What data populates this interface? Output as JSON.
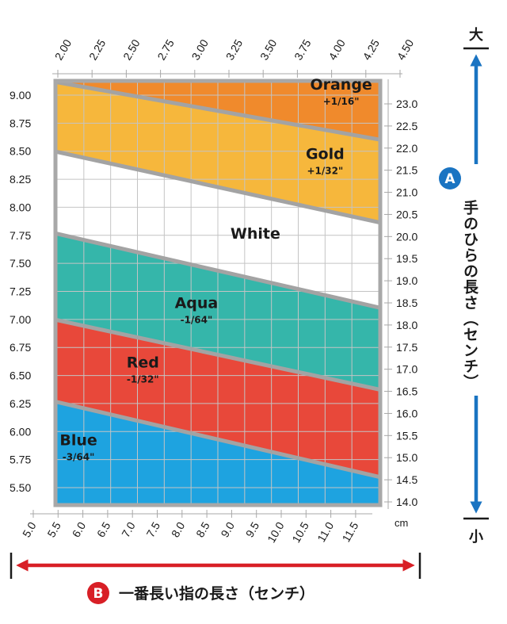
{
  "chart_data": {
    "type": "area",
    "left_axis": {
      "ticks": [
        "9.00",
        "8.75",
        "8.50",
        "8.25",
        "8.00",
        "7.75",
        "7.50",
        "7.25",
        "7.00",
        "6.75",
        "6.50",
        "6.25",
        "6.00",
        "5.75",
        "5.50"
      ],
      "range": [
        5.5,
        9.17
      ]
    },
    "right_axis": {
      "ticks": [
        "23.0",
        "22.5",
        "22.0",
        "21.5",
        "21.0",
        "20.5",
        "20.0",
        "19.5",
        "19.0",
        "18.5",
        "18.0",
        "17.5",
        "17.0",
        "16.5",
        "16.0",
        "15.5",
        "15.0",
        "14.5",
        "14.0"
      ],
      "range": [
        14.0,
        23.3
      ]
    },
    "top_axis": {
      "ticks": [
        "2.00",
        "2.25",
        "2.50",
        "2.75",
        "3.00",
        "3.25",
        "3.50",
        "3.75",
        "4.00",
        "4.25",
        "4.50"
      ],
      "range": [
        2.0,
        4.5
      ]
    },
    "bottom_axis": {
      "ticks": [
        "5.0",
        "5.5",
        "6.0",
        "6.5",
        "7.0",
        "7.5",
        "8.0",
        "8.5",
        "9.0",
        "9.5",
        "10.0",
        "10.5",
        "11.0",
        "11.5"
      ],
      "unit": "cm",
      "range": [
        5.5,
        11.5
      ]
    },
    "x_label": "一番長い指の長さ（センチ）",
    "y_label": "手のひらの長さ（センチ）",
    "y_arrow_top": "大",
    "y_arrow_bottom": "小",
    "badge_a": "A",
    "badge_b": "B",
    "boundaries": [
      {
        "name": "top",
        "y_left": 9.17,
        "y_right": 9.17
      },
      {
        "name": "orange-gold",
        "y_left": 9.12,
        "y_right": 8.6
      },
      {
        "name": "gold-white",
        "y_left": 8.5,
        "y_right": 7.86
      },
      {
        "name": "white-aqua",
        "y_left": 7.77,
        "y_right": 7.1
      },
      {
        "name": "aqua-red",
        "y_left": 7.0,
        "y_right": 6.37
      },
      {
        "name": "red-blue",
        "y_left": 6.27,
        "y_right": 5.59
      },
      {
        "name": "bottom",
        "y_left": 5.5,
        "y_right": 5.5
      }
    ],
    "zones": [
      {
        "name": "Orange",
        "adjustment": "+1/16\"",
        "color": "#f08a2c",
        "label_x": 10.8,
        "label_y": 9.05
      },
      {
        "name": "Gold",
        "adjustment": "+1/32\"",
        "color": "#f6b73c",
        "label_x": 10.5,
        "label_y": 8.43
      },
      {
        "name": "White",
        "adjustment": "",
        "color": "#ffffff",
        "label_x": 9.2,
        "label_y": 7.72
      },
      {
        "name": "Aqua",
        "adjustment": "-1/64\"",
        "color": "#35b6aa",
        "label_x": 8.1,
        "label_y": 7.1
      },
      {
        "name": "Red",
        "adjustment": "-1/32\"",
        "color": "#e8483a",
        "label_x": 7.1,
        "label_y": 6.57
      },
      {
        "name": "Blue",
        "adjustment": "-3/64\"",
        "color": "#1ea3e0",
        "label_x": 5.9,
        "label_y": 5.88
      }
    ],
    "colors": {
      "frame": "#a8a8a8",
      "grid": "#c4c4c4",
      "blue_arrow": "#1a74c2",
      "red_arrow": "#d81f26",
      "black_bar": "#1a1a1a"
    }
  }
}
